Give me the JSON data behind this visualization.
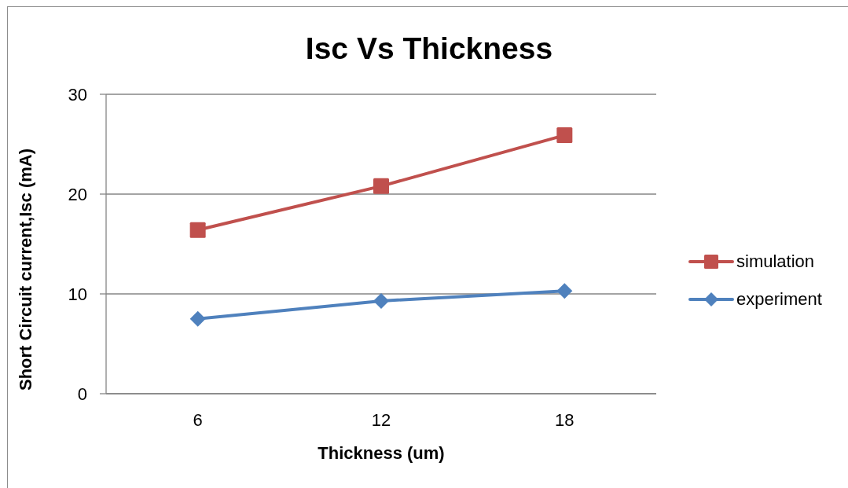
{
  "chart_data": {
    "type": "line",
    "title": "Isc Vs Thickness",
    "xlabel": "Thickness (um)",
    "ylabel": "Short Circuit current,Isc (mA)",
    "categories": [
      "6",
      "12",
      "18"
    ],
    "series": [
      {
        "name": "simulation",
        "color": "#c0504d",
        "marker": "square",
        "values": [
          16.4,
          20.8,
          25.9
        ]
      },
      {
        "name": "experiment",
        "color": "#4f81bd",
        "marker": "diamond",
        "values": [
          7.5,
          9.3,
          10.3
        ]
      }
    ],
    "ylim": [
      0,
      30
    ],
    "yticks": [
      0,
      10,
      20,
      30
    ],
    "grid": "y",
    "legend": "right",
    "line_style": "solid"
  }
}
